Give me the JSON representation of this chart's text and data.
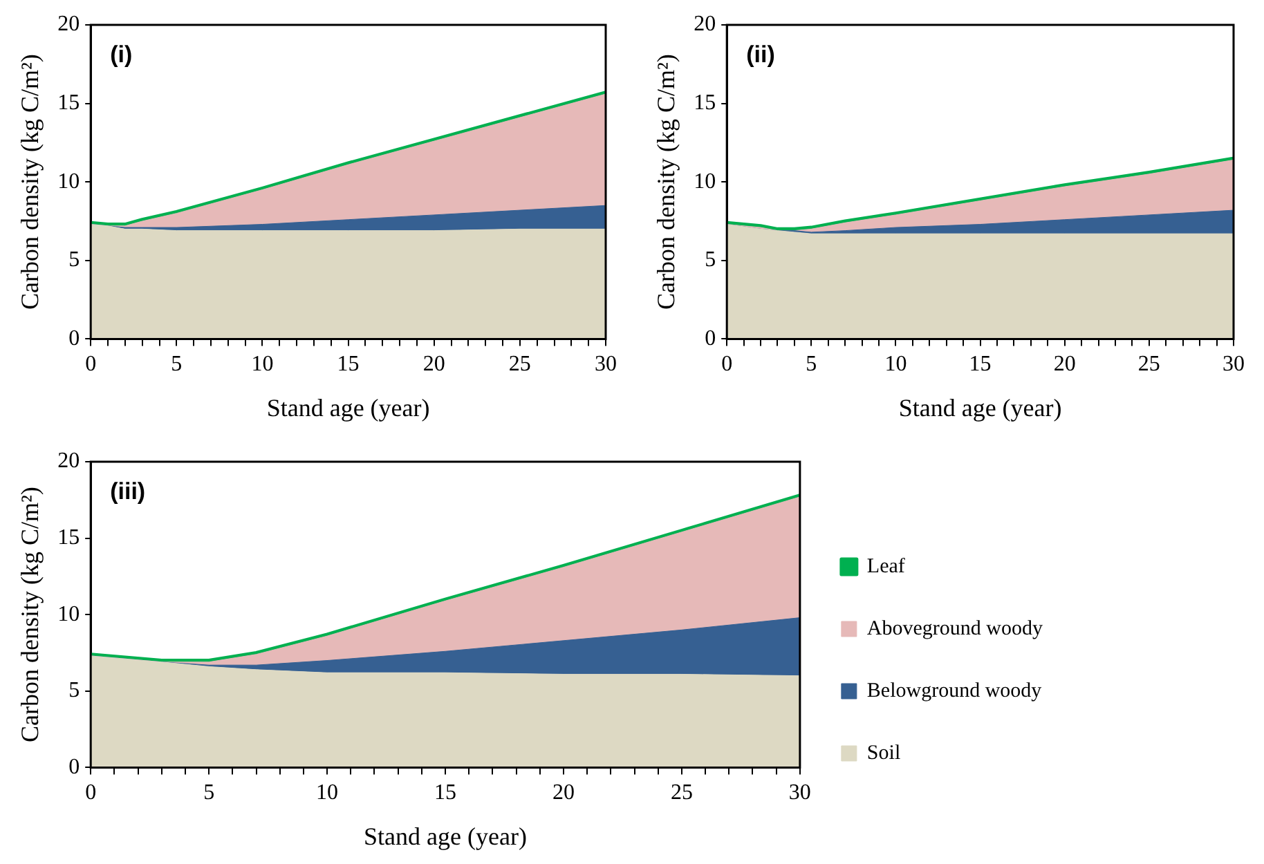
{
  "chart_data": [
    {
      "type": "area",
      "title": "(i)",
      "xlabel": "Stand age (year)",
      "ylabel": "Carbon density (kg C/m²)",
      "stacked": true,
      "x": [
        0,
        1,
        2,
        3,
        5,
        10,
        15,
        20,
        25,
        30
      ],
      "series": [
        {
          "color": "#ddd9c3",
          "values": [
            7.3,
            7.2,
            7.0,
            7.0,
            6.9,
            6.9,
            6.9,
            6.9,
            7.0,
            7.0
          ]
        },
        {
          "color": "#366092",
          "values": [
            0,
            0,
            0.1,
            0.1,
            0.2,
            0.4,
            0.7,
            1.0,
            1.2,
            1.5
          ]
        },
        {
          "color": "#e6b9b8",
          "values": [
            0,
            0,
            0.1,
            0.4,
            0.9,
            2.2,
            3.5,
            4.7,
            5.9,
            7.1
          ]
        },
        {
          "color": "#00b050",
          "values": [
            0.1,
            0.1,
            0.1,
            0.1,
            0.1,
            0.1,
            0.1,
            0.1,
            0.1,
            0.1
          ]
        }
      ],
      "xlim": [
        0,
        30
      ],
      "ylim": [
        0,
        20
      ],
      "yticks": [
        0,
        5,
        10,
        15,
        20
      ],
      "xticks": [
        0,
        {
          "value": 1,
          "label": null
        },
        {
          "value": 2,
          "label": null
        },
        {
          "value": 3,
          "label": null
        },
        {
          "value": 4,
          "label": null
        },
        5,
        {
          "value": 6,
          "label": null
        },
        {
          "value": 7,
          "label": null
        },
        {
          "value": 8,
          "label": null
        },
        {
          "value": 9,
          "label": null
        },
        10,
        {
          "value": 11,
          "label": null
        },
        {
          "value": 12,
          "label": null
        },
        {
          "value": 13,
          "label": null
        },
        {
          "value": 14,
          "label": null
        },
        15,
        {
          "value": 16,
          "label": null
        },
        {
          "value": 17,
          "label": null
        },
        {
          "value": 18,
          "label": null
        },
        {
          "value": 19,
          "label": null
        },
        20,
        {
          "value": 21,
          "label": null
        },
        {
          "value": 22,
          "label": null
        },
        {
          "value": 23,
          "label": null
        },
        {
          "value": 24,
          "label": null
        },
        25,
        {
          "value": 26,
          "label": null
        },
        {
          "value": 27,
          "label": null
        },
        {
          "value": 28,
          "label": null
        },
        {
          "value": 29,
          "label": null
        },
        30
      ]
    },
    {
      "type": "area",
      "title": "(ii)",
      "xlabel": "Stand age (year)",
      "ylabel": "Carbon density (kg C/m²)",
      "stacked": true,
      "x": [
        0,
        2,
        3,
        4,
        5,
        7,
        10,
        15,
        20,
        25,
        30
      ],
      "series": [
        {
          "color": "#ddd9c3",
          "values": [
            7.3,
            7.0,
            6.9,
            6.8,
            6.7,
            6.7,
            6.7,
            6.7,
            6.7,
            6.7,
            6.7
          ]
        },
        {
          "color": "#366092",
          "values": [
            0,
            0,
            0,
            0.1,
            0.1,
            0.2,
            0.4,
            0.6,
            0.9,
            1.2,
            1.5
          ]
        },
        {
          "color": "#e6b9b8",
          "values": [
            0,
            0.1,
            0,
            0,
            0.2,
            0.5,
            0.8,
            1.5,
            2.1,
            2.6,
            3.2
          ]
        },
        {
          "color": "#00b050",
          "values": [
            0.1,
            0.1,
            0.1,
            0.1,
            0.1,
            0.1,
            0.1,
            0.1,
            0.1,
            0.1,
            0.1
          ]
        }
      ],
      "xlim": [
        0,
        30
      ],
      "ylim": [
        0,
        20
      ],
      "yticks": [
        0,
        5,
        10,
        15,
        20
      ],
      "xticks": [
        0,
        {
          "value": 1,
          "label": null
        },
        {
          "value": 2,
          "label": null
        },
        {
          "value": 3,
          "label": null
        },
        {
          "value": 4,
          "label": null
        },
        5,
        {
          "value": 6,
          "label": null
        },
        {
          "value": 7,
          "label": null
        },
        {
          "value": 8,
          "label": null
        },
        {
          "value": 9,
          "label": null
        },
        10,
        {
          "value": 11,
          "label": null
        },
        {
          "value": 12,
          "label": null
        },
        {
          "value": 13,
          "label": null
        },
        {
          "value": 14,
          "label": null
        },
        15,
        {
          "value": 16,
          "label": null
        },
        {
          "value": 17,
          "label": null
        },
        {
          "value": 18,
          "label": null
        },
        {
          "value": 19,
          "label": null
        },
        20,
        {
          "value": 21,
          "label": null
        },
        {
          "value": 22,
          "label": null
        },
        {
          "value": 23,
          "label": null
        },
        {
          "value": 24,
          "label": null
        },
        25,
        {
          "value": 26,
          "label": null
        },
        {
          "value": 27,
          "label": null
        },
        {
          "value": 28,
          "label": null
        },
        {
          "value": 29,
          "label": null
        },
        30
      ]
    },
    {
      "type": "area",
      "title": "(iii)",
      "xlabel": "Stand age (year)",
      "ylabel": "Carbon density (kg C/m²)",
      "stacked": true,
      "legend": "right",
      "x": [
        0,
        3,
        5,
        7,
        10,
        15,
        20,
        25,
        30
      ],
      "series": [
        {
          "name": "Soil",
          "color": "#ddd9c3",
          "values": [
            7.3,
            6.9,
            6.6,
            6.4,
            6.2,
            6.2,
            6.1,
            6.1,
            6.0
          ]
        },
        {
          "name": "Belowground woody",
          "color": "#366092",
          "values": [
            0,
            0,
            0.1,
            0.3,
            0.8,
            1.4,
            2.2,
            2.9,
            3.8
          ]
        },
        {
          "name": "Aboveground woody",
          "color": "#e6b9b8",
          "values": [
            0,
            0,
            0.2,
            0.7,
            1.6,
            3.3,
            4.8,
            6.4,
            7.9
          ]
        },
        {
          "name": "Leaf",
          "color": "#00b050",
          "values": [
            0.1,
            0.1,
            0.1,
            0.1,
            0.1,
            0.1,
            0.1,
            0.1,
            0.1
          ]
        }
      ],
      "xlim": [
        0,
        30
      ],
      "ylim": [
        0,
        20
      ],
      "yticks": [
        0,
        5,
        10,
        15,
        20
      ],
      "xticks": [
        0,
        {
          "value": 1,
          "label": null
        },
        {
          "value": 2,
          "label": null
        },
        {
          "value": 3,
          "label": null
        },
        {
          "value": 4,
          "label": null
        },
        5,
        {
          "value": 6,
          "label": null
        },
        {
          "value": 7,
          "label": null
        },
        {
          "value": 8,
          "label": null
        },
        {
          "value": 9,
          "label": null
        },
        10,
        {
          "value": 11,
          "label": null
        },
        {
          "value": 12,
          "label": null
        },
        {
          "value": 13,
          "label": null
        },
        {
          "value": 14,
          "label": null
        },
        15,
        {
          "value": 16,
          "label": null
        },
        {
          "value": 17,
          "label": null
        },
        {
          "value": 18,
          "label": null
        },
        {
          "value": 19,
          "label": null
        },
        20,
        {
          "value": 21,
          "label": null
        },
        {
          "value": 22,
          "label": null
        },
        {
          "value": 23,
          "label": null
        },
        {
          "value": 24,
          "label": null
        },
        25,
        {
          "value": 26,
          "label": null
        },
        {
          "value": 27,
          "label": null
        },
        {
          "value": 28,
          "label": null
        },
        {
          "value": 29,
          "label": null
        },
        30
      ]
    }
  ]
}
